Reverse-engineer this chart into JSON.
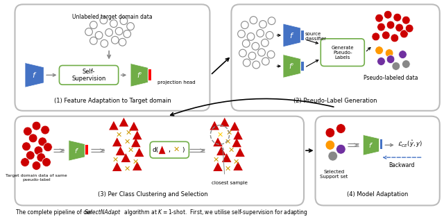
{
  "fig_width": 6.4,
  "fig_height": 3.16,
  "dpi": 100,
  "bg_color": "#ffffff",
  "box1_title": "(1) Feature Adaptation to Target domain",
  "box2_title": "(2) Pseudo-Label Generation",
  "box3_title": "(3) Per Class Clustering and Selection",
  "box4_title": "(4) Model Adaptation",
  "unlabeled_text": "Unlabeled target domain data",
  "proj_head_text": "projection head",
  "self_sup_text": "Self-\nSupervision",
  "source_classifier_text": "source\nclassifier",
  "gen_pseudo_text": "Generate\nPseudo-\nLabels",
  "pseudo_labeled_text": "Pseudo-labeled data",
  "target_domain_text": "Target domain data of same\npseudo-label",
  "closest_sample_text": "closest sample",
  "selected_support_text": "Selected\nSupport set",
  "backward_text": "Backward",
  "colors": {
    "blue_encoder": "#4472c4",
    "green_encoder": "#70ad47",
    "red_bar": "#ff0000",
    "blue_bar": "#4472c4",
    "red_dot": "#cc0000",
    "orange_dot": "#ff9900",
    "purple_dot": "#7030a0",
    "gray_dot": "#808080",
    "dashed_arrow": "#4472c4"
  }
}
